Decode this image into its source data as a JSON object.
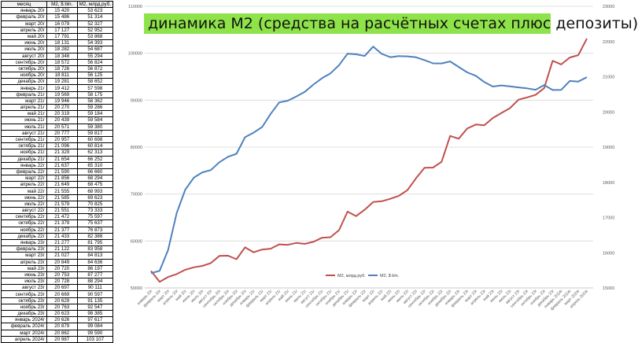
{
  "table": {
    "headers": [
      "месяц",
      "M2, $ bln.",
      "M2, млрд.руб."
    ],
    "rows": [
      [
        "январь 20г",
        "15 420",
        "53 623"
      ],
      [
        "февраль 20г",
        "15 486",
        "51 314"
      ],
      [
        "март 20г",
        "16 079",
        "52 327"
      ],
      [
        "апрель 20г",
        "17 127",
        "52 952"
      ],
      [
        "май 20г",
        "17 791",
        "53 868"
      ],
      [
        "июнь 20г",
        "18 131",
        "54 393"
      ],
      [
        "июль 20г",
        "18 282",
        "54 687"
      ],
      [
        "август 20г",
        "18 348",
        "55 294"
      ],
      [
        "сентябрь 20г",
        "18 572",
        "56 824"
      ],
      [
        "октябрь 20г",
        "18 726",
        "56 872"
      ],
      [
        "ноябрь 20г",
        "18 811",
        "56 125"
      ],
      [
        "декабрь 20г",
        "19 281",
        "58 652"
      ],
      [
        "январь 21г",
        "19 412",
        "57 598"
      ],
      [
        "февраль 21г",
        "19 569",
        "58 175"
      ],
      [
        "март 21г",
        "19 946",
        "58 362"
      ],
      [
        "апрель 21г",
        "20 270",
        "59 286"
      ],
      [
        "май 21г",
        "20 319",
        "59 184"
      ],
      [
        "июнь 21г",
        "20 439",
        "59 584"
      ],
      [
        "июль 21г",
        "20 571",
        "59 380"
      ],
      [
        "август 21г",
        "20 777",
        "59 817"
      ],
      [
        "сентябрь 21г",
        "20 957",
        "60 698"
      ],
      [
        "октябрь 21г",
        "21 096",
        "60 814"
      ],
      [
        "ноябрь 21г",
        "21 329",
        "62 313"
      ],
      [
        "декабрь 21г",
        "21 654",
        "66 252"
      ],
      [
        "январь 22г",
        "21 637",
        "65 310"
      ],
      [
        "февраль 22г",
        "21 590",
        "66 660"
      ],
      [
        "март 22г",
        "21 856",
        "68 294"
      ],
      [
        "апрель 22г",
        "21 649",
        "68 475"
      ],
      [
        "май 22г",
        "21 555",
        "68 993"
      ],
      [
        "июнь 22г",
        "21 585",
        "69 623"
      ],
      [
        "июль 22г",
        "21 579",
        "70 825"
      ],
      [
        "август 22г",
        "21 551",
        "73 333"
      ],
      [
        "сентябрь 22г",
        "21 472",
        "75 597"
      ],
      [
        "октябрь 22г",
        "21 379",
        "75 637"
      ],
      [
        "ноябрь 22г",
        "21 377",
        "76 873"
      ],
      [
        "декабрь 22г",
        "21 433",
        "82 388"
      ],
      [
        "январь 23г",
        "21 277",
        "81 795"
      ],
      [
        "февраль 23г",
        "21 122",
        "83 958"
      ],
      [
        "март 23г",
        "21 027",
        "84 813"
      ],
      [
        "апрель 23г",
        "20 849",
        "84 636"
      ],
      [
        "май 23г",
        "20 720",
        "86 197"
      ],
      [
        "июнь 23г",
        "20 753",
        "87 277"
      ],
      [
        "июль 23г",
        "20 728",
        "88 294"
      ],
      [
        "август 23г",
        "20 697",
        "90 111"
      ],
      [
        "сентябрь 23г",
        "20 669",
        "90 597"
      ],
      [
        "октябрь 23г",
        "20 629",
        "91 135"
      ],
      [
        "ноябрь 23г",
        "20 763",
        "92 547"
      ],
      [
        "декабрь 23г",
        "20 623",
        "98 385"
      ],
      [
        "январь 2024г",
        "20 626",
        "97 617"
      ],
      [
        "февраль 2024г",
        "20 879",
        "99 084"
      ],
      [
        "март 2024г",
        "20 862",
        "99 590"
      ],
      [
        "апрель 2024г",
        "20 987",
        "103 107"
      ]
    ]
  },
  "chart_data": {
    "type": "line",
    "title": "динамика M2 (средства на расчётных счетах плюс депозиты)",
    "left_axis": {
      "min": 50000,
      "max": 110000,
      "ticks": [
        "50000",
        "60000",
        "70000",
        "80000",
        "90000",
        "100000",
        "110000"
      ]
    },
    "right_axis": {
      "min": 15000,
      "max": 23000,
      "ticks": [
        "15000",
        "16000",
        "17000",
        "18000",
        "19000",
        "20000",
        "21000",
        "22000",
        "23000"
      ]
    },
    "x": [
      "январь 20г",
      "февраль 20г",
      "март 20г",
      "апрель 20г",
      "май 20г",
      "июнь 20г",
      "июль 20г",
      "август 20г",
      "сентябрь 20г",
      "октябрь 20г",
      "ноябрь 20г",
      "декабрь 20г",
      "январь 21г",
      "февраль 21г",
      "март 21г",
      "апрель 21г",
      "май 21г",
      "июнь 21г",
      "июль 21г",
      "август 21г",
      "сентябрь 21г",
      "октябрь 21г",
      "ноябрь 21г",
      "декабрь 21г",
      "январь 22г",
      "февраль 22г",
      "март 22г",
      "апрель 22г",
      "май 22г",
      "июнь 22г",
      "июль 22г",
      "август 22г",
      "сентябрь 22г",
      "октябрь 22г",
      "ноябрь 22г",
      "декабрь 22г",
      "январь 23г",
      "февраль 23г",
      "март 23г",
      "апрель 23г",
      "май 23г",
      "июнь 23г",
      "июль 23г",
      "август 23г",
      "сентябрь 23г",
      "октябрь 23г",
      "ноябрь 23г",
      "декабрь 23г",
      "январь 2024г",
      "февраль 2024г",
      "март 2024г",
      "апрель 2024г"
    ],
    "series": [
      {
        "name": "M2, млрд.руб.",
        "axis": "left",
        "color": "#c0504d",
        "values": [
          53623,
          51314,
          52327,
          52952,
          53868,
          54393,
          54687,
          55294,
          56824,
          56872,
          56125,
          58652,
          57598,
          58175,
          58362,
          59286,
          59184,
          59584,
          59380,
          59817,
          60698,
          60814,
          62313,
          66252,
          65310,
          66660,
          68294,
          68475,
          68993,
          69623,
          70825,
          73333,
          75597,
          75637,
          76873,
          82388,
          81795,
          83958,
          84813,
          84636,
          86197,
          87277,
          88294,
          90111,
          90597,
          91135,
          92547,
          98385,
          97617,
          99084,
          99590,
          103107
        ]
      },
      {
        "name": "M2, $ bln.",
        "axis": "right",
        "color": "#4f81bd",
        "values": [
          15420,
          15486,
          16079,
          17127,
          17791,
          18131,
          18282,
          18348,
          18572,
          18726,
          18811,
          19281,
          19412,
          19569,
          19946,
          20270,
          20319,
          20439,
          20571,
          20777,
          20957,
          21096,
          21329,
          21654,
          21637,
          21590,
          21856,
          21649,
          21555,
          21585,
          21579,
          21551,
          21472,
          21379,
          21377,
          21433,
          21277,
          21122,
          21027,
          20849,
          20720,
          20753,
          20728,
          20697,
          20669,
          20629,
          20763,
          20623,
          20626,
          20879,
          20862,
          20987
        ]
      }
    ],
    "legend": "bottom-right",
    "grid": true
  }
}
